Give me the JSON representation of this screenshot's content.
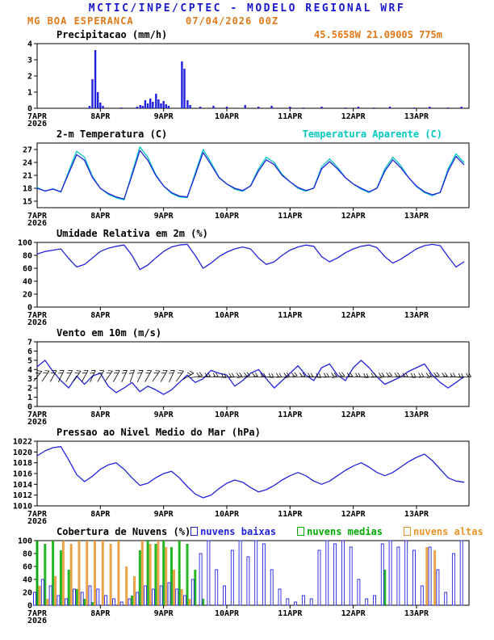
{
  "header": {
    "title": "MCTIC/INPE/CPTEC - MODELO REGIONAL WRF",
    "station": "MG BOA ESPERANCA",
    "run": "07/04/2026 00Z",
    "location": "45.5658W 21.0900S 775m"
  },
  "colors": {
    "title_blue": "#1818cc",
    "orange": "#e07818",
    "line_blue": "#2222dd",
    "cyan": "#00c8c0",
    "green": "#00aa00",
    "cloud_orange": "#e89428",
    "axis_black": "#000000"
  },
  "x_axis": {
    "start": 7,
    "end": 13.83,
    "day_ticks": [
      8,
      9,
      10,
      11,
      12,
      13
    ],
    "day_labels": [
      "8APR",
      "9APR",
      "10APR",
      "11APR",
      "12APR",
      "13APR"
    ],
    "origin_label": "7APR",
    "origin_year": "2026"
  },
  "time_days": [
    7,
    7.125,
    7.25,
    7.375,
    7.5,
    7.625,
    7.75,
    7.875,
    8,
    8.125,
    8.25,
    8.375,
    8.5,
    8.625,
    8.75,
    8.875,
    9,
    9.125,
    9.25,
    9.375,
    9.5,
    9.625,
    9.75,
    9.875,
    10,
    10.125,
    10.25,
    10.375,
    10.5,
    10.625,
    10.75,
    10.875,
    11,
    11.125,
    11.25,
    11.375,
    11.5,
    11.625,
    11.75,
    11.875,
    12,
    12.125,
    12.25,
    12.375,
    12.5,
    12.625,
    12.75,
    12.875,
    13,
    13.125,
    13.25,
    13.375,
    13.5,
    13.625,
    13.75
  ],
  "chart_data": [
    {
      "type": "bar",
      "title": "Precipitacao (mm/h)",
      "ylim": [
        0,
        4
      ],
      "yticks": [
        0,
        1,
        2,
        3,
        4
      ],
      "color": "#2222dd",
      "bars": [
        [
          7.83,
          0.15
        ],
        [
          7.875,
          1.8
        ],
        [
          7.92,
          3.6
        ],
        [
          7.96,
          1.0
        ],
        [
          8.0,
          0.35
        ],
        [
          8.04,
          0.15
        ],
        [
          8.33,
          0.05
        ],
        [
          8.58,
          0.1
        ],
        [
          8.63,
          0.2
        ],
        [
          8.67,
          0.15
        ],
        [
          8.71,
          0.5
        ],
        [
          8.75,
          0.3
        ],
        [
          8.79,
          0.6
        ],
        [
          8.83,
          0.4
        ],
        [
          8.88,
          0.9
        ],
        [
          8.92,
          0.55
        ],
        [
          8.96,
          0.3
        ],
        [
          9.0,
          0.45
        ],
        [
          9.04,
          0.25
        ],
        [
          9.08,
          0.15
        ],
        [
          9.29,
          2.9
        ],
        [
          9.33,
          2.45
        ],
        [
          9.38,
          0.5
        ],
        [
          9.42,
          0.2
        ],
        [
          9.58,
          0.1
        ],
        [
          9.79,
          0.15
        ],
        [
          10.0,
          0.1
        ],
        [
          10.29,
          0.2
        ],
        [
          10.5,
          0.1
        ],
        [
          10.71,
          0.15
        ],
        [
          11.0,
          0.1
        ],
        [
          11.21,
          0.05
        ],
        [
          11.5,
          0.1
        ],
        [
          11.88,
          0.05
        ],
        [
          12.08,
          0.1
        ],
        [
          12.33,
          0.05
        ],
        [
          12.58,
          0.1
        ],
        [
          12.96,
          0.05
        ],
        [
          13.21,
          0.1
        ],
        [
          13.5,
          0.05
        ],
        [
          13.71,
          0.1
        ]
      ]
    },
    {
      "type": "line",
      "title": "2-m Temperatura (C)",
      "legend": "Temperatura Aparente (C)",
      "ylim": [
        13.5,
        28.5
      ],
      "yticks": [
        15,
        18,
        21,
        24,
        27
      ],
      "series": [
        {
          "name": "2-m Temperatura",
          "color": "#2222dd",
          "values": [
            18,
            17.4,
            17.8,
            17.2,
            21.5,
            25.8,
            24.5,
            20.5,
            18,
            16.8,
            16,
            15.5,
            21,
            26.8,
            24.5,
            21,
            18.5,
            17,
            16.2,
            16,
            21,
            26.3,
            23.5,
            20.5,
            19,
            18,
            17.5,
            18.5,
            22,
            24.6,
            23.5,
            21,
            19.5,
            18.2,
            17.5,
            18,
            22.5,
            24.2,
            22.5,
            20.5,
            19,
            18,
            17.2,
            18,
            22,
            24.6,
            22.8,
            20.5,
            18.5,
            17.2,
            16.5,
            17,
            22,
            25.4,
            23.5
          ]
        },
        {
          "name": "Temperatura Aparente",
          "color": "#00c8c0",
          "values": [
            18.2,
            17.3,
            17.9,
            17.1,
            22,
            26.6,
            25.2,
            20.8,
            18,
            16.6,
            15.8,
            15.3,
            21.5,
            27.6,
            25.2,
            21.2,
            18.5,
            16.8,
            16,
            15.8,
            21.5,
            27,
            24,
            20.6,
            19,
            17.8,
            17.3,
            18.6,
            22.5,
            25.2,
            24,
            21.2,
            19.5,
            18,
            17.3,
            18.1,
            23,
            24.8,
            22.9,
            20.5,
            19,
            17.8,
            17,
            18.1,
            22.5,
            25.2,
            23.3,
            20.5,
            18.4,
            17,
            16.3,
            17.1,
            22.5,
            26,
            24
          ]
        }
      ]
    },
    {
      "type": "line",
      "title": "Umidade Relativa em 2m (%)",
      "ylim": [
        0,
        100
      ],
      "yticks": [
        0,
        20,
        40,
        60,
        80,
        100
      ],
      "series": [
        {
          "name": "Umidade Relativa",
          "color": "#2222dd",
          "values": [
            82,
            86,
            88,
            90,
            75,
            62,
            66,
            76,
            86,
            91,
            94,
            96,
            80,
            58,
            65,
            76,
            86,
            93,
            96,
            97,
            80,
            60,
            68,
            78,
            85,
            90,
            93,
            90,
            76,
            66,
            70,
            80,
            88,
            93,
            96,
            94,
            78,
            70,
            76,
            84,
            90,
            94,
            96,
            92,
            78,
            68,
            74,
            82,
            90,
            95,
            97,
            95,
            78,
            62,
            70
          ]
        }
      ]
    },
    {
      "type": "wind",
      "title": "Vento em 10m (m/s)",
      "ylim": [
        0,
        7
      ],
      "yticks": [
        0,
        1,
        2,
        3,
        4,
        5,
        6,
        7
      ],
      "color": "#2222dd",
      "barb_y": 3.2,
      "speed": [
        4.3,
        5,
        3.8,
        2.8,
        2,
        3.3,
        2.4,
        3.3,
        3.6,
        2.2,
        1.5,
        2,
        2.6,
        1.6,
        2.2,
        1.8,
        1.3,
        1.8,
        2.6,
        3.4,
        2.6,
        3,
        3.9,
        3.6,
        3.4,
        2.2,
        2.8,
        3.6,
        4,
        3,
        2,
        2.8,
        3.6,
        4.4,
        3.4,
        2.8,
        4.2,
        4.6,
        3.4,
        2.8,
        4.2,
        5,
        4.2,
        3.2,
        2.4,
        2.8,
        3.2,
        3.8,
        4.2,
        4.6,
        3.4,
        2.6,
        2,
        2.6,
        3.2
      ],
      "dir": [
        50,
        55,
        60,
        65,
        60,
        55,
        60,
        65,
        60,
        55,
        60,
        65,
        70,
        65,
        60,
        55,
        60,
        65,
        55,
        30,
        10,
        5,
        0,
        -5,
        0,
        5,
        10,
        5,
        0,
        -5,
        0,
        5,
        10,
        5,
        0,
        -5,
        0,
        5,
        10,
        5,
        0,
        -5,
        0,
        5,
        10,
        5,
        0,
        -5,
        0,
        5,
        10,
        5,
        0,
        -5,
        0
      ]
    },
    {
      "type": "line",
      "title": "Pressao ao Nivel Medio do Mar (hPa)",
      "ylim": [
        1010,
        1022
      ],
      "yticks": [
        1010,
        1012,
        1014,
        1016,
        1018,
        1020,
        1022
      ],
      "series": [
        {
          "name": "Pressao ao Nivel Medio do Mar",
          "color": "#2222dd",
          "values": [
            1019.3,
            1020.2,
            1020.8,
            1021,
            1018.5,
            1015.8,
            1014.5,
            1015.5,
            1016.8,
            1017.6,
            1018,
            1016.8,
            1015.2,
            1013.8,
            1014.2,
            1015.2,
            1016,
            1016.4,
            1015.2,
            1013.6,
            1012.2,
            1011.5,
            1012,
            1013.2,
            1014.2,
            1014.8,
            1014.4,
            1013.4,
            1012.6,
            1013,
            1013.8,
            1014.8,
            1015.6,
            1016.2,
            1015.6,
            1014.6,
            1014,
            1014.6,
            1015.6,
            1016.6,
            1017.4,
            1018,
            1017.2,
            1016.2,
            1015.6,
            1016.2,
            1017.2,
            1018.2,
            1019,
            1019.6,
            1018.4,
            1016.8,
            1015.2,
            1014.6,
            1014.4
          ]
        }
      ]
    },
    {
      "type": "cloudbars",
      "title": "Cobertura de Nuvens (%)",
      "ylim": [
        0,
        100
      ],
      "yticks": [
        0,
        20,
        40,
        60,
        80,
        100
      ],
      "series": [
        {
          "name": "nuvens baixas",
          "color": "#2222dd",
          "values": [
            20,
            40,
            30,
            15,
            10,
            25,
            20,
            30,
            25,
            15,
            10,
            5,
            10,
            20,
            30,
            25,
            30,
            35,
            25,
            15,
            40,
            80,
            100,
            55,
            30,
            85,
            100,
            75,
            100,
            95,
            55,
            25,
            10,
            5,
            15,
            10,
            85,
            100,
            95,
            100,
            90,
            40,
            10,
            15,
            95,
            100,
            90,
            100,
            85,
            30,
            90,
            55,
            20,
            80,
            100
          ]
        },
        {
          "name": "nuvens medias",
          "color": "#00aa00",
          "values": [
            100,
            95,
            100,
            85,
            55,
            25,
            10,
            5,
            0,
            0,
            0,
            0,
            15,
            85,
            100,
            95,
            100,
            90,
            100,
            95,
            55,
            10,
            0,
            0,
            0,
            0,
            0,
            0,
            0,
            0,
            0,
            0,
            0,
            0,
            0,
            0,
            0,
            0,
            0,
            0,
            0,
            0,
            0,
            0,
            55,
            0,
            0,
            0,
            0,
            0,
            0,
            0,
            0,
            0,
            0
          ]
        },
        {
          "name": "nuvens altas",
          "color": "#e89428",
          "values": [
            30,
            10,
            45,
            100,
            95,
            100,
            100,
            100,
            100,
            95,
            100,
            60,
            45,
            100,
            95,
            100,
            90,
            55,
            25,
            10,
            0,
            0,
            0,
            0,
            0,
            0,
            0,
            0,
            0,
            0,
            0,
            0,
            0,
            0,
            0,
            0,
            0,
            0,
            0,
            0,
            0,
            0,
            0,
            0,
            0,
            0,
            0,
            0,
            0,
            90,
            85,
            0,
            0,
            0,
            0
          ]
        }
      ]
    }
  ]
}
